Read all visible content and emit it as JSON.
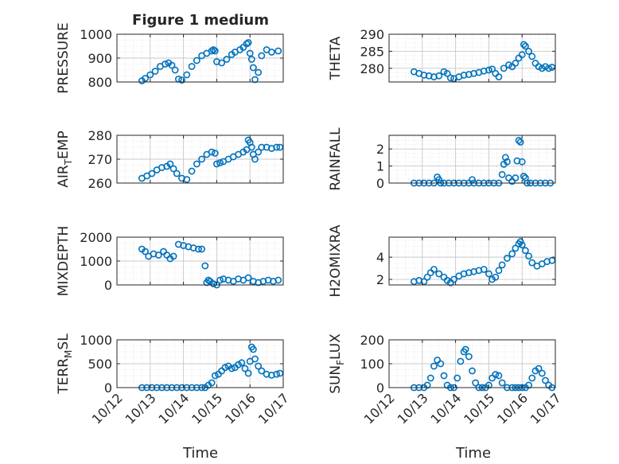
{
  "figure": {
    "title": "Figure 1 medium"
  },
  "colors": {
    "marker": "#0072BD",
    "axis": "#262626",
    "grid": "#c8c8c8",
    "minor_grid": "#e3e3e3"
  },
  "x_axis": {
    "label": "Time",
    "tick_labels": [
      "10/12",
      "10/13",
      "10/14",
      "10/15",
      "10/16",
      "10/17"
    ],
    "ticks_days": [
      0,
      1,
      2,
      3,
      4,
      5
    ],
    "range_days": [
      0,
      5
    ]
  },
  "chart_data": [
    {
      "type": "scatter",
      "ylabel": "PRESSURE",
      "ylim": [
        800,
        1000
      ],
      "yticks": [
        800,
        900,
        1000
      ],
      "grid": true,
      "minor_grid": true,
      "x": [
        0.75,
        0.85,
        1.0,
        1.15,
        1.3,
        1.45,
        1.55,
        1.65,
        1.75,
        1.85,
        1.95,
        2.1,
        2.25,
        2.4,
        2.55,
        2.7,
        2.85,
        2.9,
        2.95,
        3.0,
        3.15,
        3.3,
        3.45,
        3.55,
        3.7,
        3.8,
        3.9,
        3.95,
        4.0,
        4.05,
        4.1,
        4.15,
        4.25,
        4.35,
        4.5,
        4.65,
        4.85
      ],
      "y": [
        805,
        815,
        830,
        845,
        865,
        875,
        880,
        870,
        850,
        812,
        808,
        830,
        865,
        890,
        910,
        920,
        930,
        935,
        930,
        885,
        880,
        895,
        915,
        925,
        935,
        945,
        960,
        965,
        920,
        895,
        860,
        810,
        840,
        910,
        935,
        925,
        930
      ]
    },
    {
      "type": "scatter",
      "ylabel": "THETA",
      "ylim": [
        276,
        290
      ],
      "yticks": [
        280,
        285,
        290
      ],
      "grid": true,
      "minor_grid": true,
      "x": [
        0.75,
        0.9,
        1.05,
        1.2,
        1.35,
        1.5,
        1.65,
        1.75,
        1.85,
        1.95,
        2.1,
        2.25,
        2.4,
        2.55,
        2.7,
        2.85,
        3.0,
        3.1,
        3.2,
        3.3,
        3.45,
        3.6,
        3.7,
        3.8,
        3.9,
        4.0,
        4.05,
        4.1,
        4.2,
        4.3,
        4.4,
        4.5,
        4.6,
        4.7,
        4.8,
        4.9
      ],
      "y": [
        279,
        278.5,
        278,
        277.8,
        277.5,
        277.8,
        279,
        278.5,
        277.2,
        277,
        277.5,
        278,
        278.2,
        278.5,
        278.8,
        279.2,
        279.5,
        279.8,
        278.5,
        277.5,
        280,
        281,
        280.5,
        281.5,
        283,
        284,
        287,
        286.5,
        285,
        283.5,
        281.5,
        280.5,
        280,
        280.5,
        280,
        280.3
      ]
    },
    {
      "type": "scatter",
      "ylabel": "AIR_TEMP",
      "ylim": [
        260,
        280
      ],
      "yticks": [
        260,
        270,
        280
      ],
      "grid": true,
      "minor_grid": true,
      "x": [
        0.75,
        0.9,
        1.05,
        1.2,
        1.35,
        1.5,
        1.6,
        1.7,
        1.8,
        1.95,
        2.1,
        2.25,
        2.4,
        2.55,
        2.7,
        2.85,
        2.95,
        3.0,
        3.1,
        3.2,
        3.35,
        3.5,
        3.65,
        3.8,
        3.9,
        3.95,
        4.0,
        4.05,
        4.1,
        4.15,
        4.25,
        4.35,
        4.5,
        4.65,
        4.8,
        4.9
      ],
      "y": [
        262,
        263,
        264,
        265.5,
        266.5,
        267,
        268,
        266,
        264,
        262,
        261.5,
        265,
        268,
        270,
        272,
        273,
        272.5,
        268,
        268.5,
        269,
        270,
        271,
        272,
        273,
        274,
        278,
        277,
        275,
        272,
        270,
        273,
        275,
        275,
        274.5,
        275,
        275
      ]
    },
    {
      "type": "scatter",
      "ylabel": "RAINFALL",
      "ylim": [
        0,
        2.8
      ],
      "yticks": [
        0,
        1,
        2
      ],
      "grid": true,
      "minor_grid": true,
      "x": [
        0.75,
        0.9,
        1.05,
        1.2,
        1.35,
        1.45,
        1.5,
        1.55,
        1.65,
        1.8,
        1.95,
        2.1,
        2.25,
        2.4,
        2.5,
        2.55,
        2.7,
        2.85,
        3.0,
        3.15,
        3.3,
        3.4,
        3.45,
        3.5,
        3.55,
        3.6,
        3.7,
        3.8,
        3.85,
        3.9,
        3.95,
        4.0,
        4.05,
        4.1,
        4.15,
        4.25,
        4.4,
        4.55,
        4.7,
        4.85
      ],
      "y": [
        0,
        0,
        0,
        0,
        0,
        0.35,
        0.2,
        0,
        0,
        0,
        0,
        0,
        0,
        0,
        0.2,
        0,
        0,
        0,
        0,
        0,
        0,
        0.5,
        1.1,
        1.5,
        1.25,
        0.3,
        0.1,
        0.3,
        1.3,
        2.5,
        2.4,
        1.25,
        0.4,
        0.3,
        0,
        0,
        0,
        0,
        0,
        0
      ]
    },
    {
      "type": "scatter",
      "ylabel": "MIXDEPTH",
      "ylim": [
        0,
        2000
      ],
      "yticks": [
        0,
        1000,
        2000
      ],
      "grid": true,
      "minor_grid": true,
      "x": [
        0.75,
        0.85,
        0.95,
        1.1,
        1.25,
        1.4,
        1.5,
        1.6,
        1.7,
        1.85,
        2.0,
        2.15,
        2.3,
        2.45,
        2.55,
        2.65,
        2.7,
        2.75,
        2.8,
        2.9,
        3.0,
        3.1,
        3.2,
        3.35,
        3.5,
        3.65,
        3.8,
        3.95,
        4.1,
        4.25,
        4.4,
        4.55,
        4.7,
        4.85
      ],
      "y": [
        1500,
        1400,
        1200,
        1300,
        1250,
        1400,
        1250,
        1100,
        1200,
        1700,
        1650,
        1600,
        1550,
        1500,
        1500,
        800,
        100,
        200,
        150,
        50,
        0,
        200,
        250,
        200,
        150,
        250,
        200,
        300,
        150,
        100,
        150,
        200,
        150,
        200
      ]
    },
    {
      "type": "scatter",
      "ylabel": "H2OMIXRA",
      "ylim": [
        1.5,
        5.8
      ],
      "yticks": [
        2,
        4
      ],
      "grid": true,
      "minor_grid": true,
      "x": [
        0.75,
        0.9,
        1.05,
        1.15,
        1.25,
        1.35,
        1.5,
        1.65,
        1.75,
        1.85,
        1.95,
        2.1,
        2.25,
        2.4,
        2.55,
        2.7,
        2.85,
        3.0,
        3.1,
        3.2,
        3.3,
        3.4,
        3.55,
        3.7,
        3.8,
        3.9,
        3.95,
        4.0,
        4.1,
        4.2,
        4.3,
        4.45,
        4.6,
        4.75,
        4.9
      ],
      "y": [
        1.8,
        1.9,
        1.8,
        2.2,
        2.6,
        2.9,
        2.5,
        2.2,
        1.9,
        1.7,
        2.0,
        2.3,
        2.5,
        2.6,
        2.7,
        2.8,
        2.9,
        2.5,
        2.0,
        2.2,
        2.8,
        3.3,
        3.9,
        4.3,
        4.8,
        5.2,
        5.4,
        5.1,
        4.6,
        4.1,
        3.5,
        3.2,
        3.4,
        3.6,
        3.7
      ]
    },
    {
      "type": "scatter",
      "ylabel": "TERR_MSL",
      "ylim": [
        0,
        1000
      ],
      "yticks": [
        0,
        500,
        1000
      ],
      "grid": true,
      "minor_grid": true,
      "x": [
        0.75,
        0.9,
        1.05,
        1.2,
        1.35,
        1.5,
        1.65,
        1.8,
        1.95,
        2.1,
        2.25,
        2.4,
        2.55,
        2.65,
        2.75,
        2.85,
        2.95,
        3.05,
        3.15,
        3.25,
        3.35,
        3.45,
        3.55,
        3.65,
        3.75,
        3.85,
        3.95,
        4.0,
        4.05,
        4.1,
        4.15,
        4.25,
        4.35,
        4.5,
        4.65,
        4.8,
        4.9
      ],
      "y": [
        0,
        0,
        0,
        0,
        0,
        0,
        0,
        0,
        0,
        0,
        0,
        0,
        0,
        0,
        50,
        100,
        250,
        280,
        350,
        420,
        450,
        400,
        420,
        480,
        520,
        400,
        300,
        550,
        850,
        800,
        600,
        450,
        350,
        280,
        260,
        280,
        300
      ]
    },
    {
      "type": "scatter",
      "ylabel": "SUN_FLUX",
      "ylim": [
        0,
        200
      ],
      "yticks": [
        0,
        100,
        200
      ],
      "grid": true,
      "minor_grid": true,
      "x": [
        0.75,
        0.9,
        1.05,
        1.15,
        1.25,
        1.35,
        1.45,
        1.55,
        1.65,
        1.75,
        1.85,
        1.95,
        2.05,
        2.15,
        2.25,
        2.3,
        2.4,
        2.5,
        2.6,
        2.7,
        2.8,
        2.9,
        3.0,
        3.1,
        3.2,
        3.3,
        3.4,
        3.55,
        3.7,
        3.8,
        3.9,
        4.0,
        4.1,
        4.2,
        4.3,
        4.4,
        4.5,
        4.6,
        4.7,
        4.8,
        4.9
      ],
      "y": [
        0,
        0,
        0,
        10,
        40,
        90,
        115,
        100,
        50,
        10,
        0,
        0,
        40,
        110,
        150,
        160,
        130,
        70,
        20,
        0,
        0,
        0,
        10,
        40,
        55,
        50,
        20,
        0,
        0,
        0,
        0,
        0,
        0,
        10,
        40,
        70,
        80,
        60,
        30,
        10,
        0
      ]
    }
  ]
}
